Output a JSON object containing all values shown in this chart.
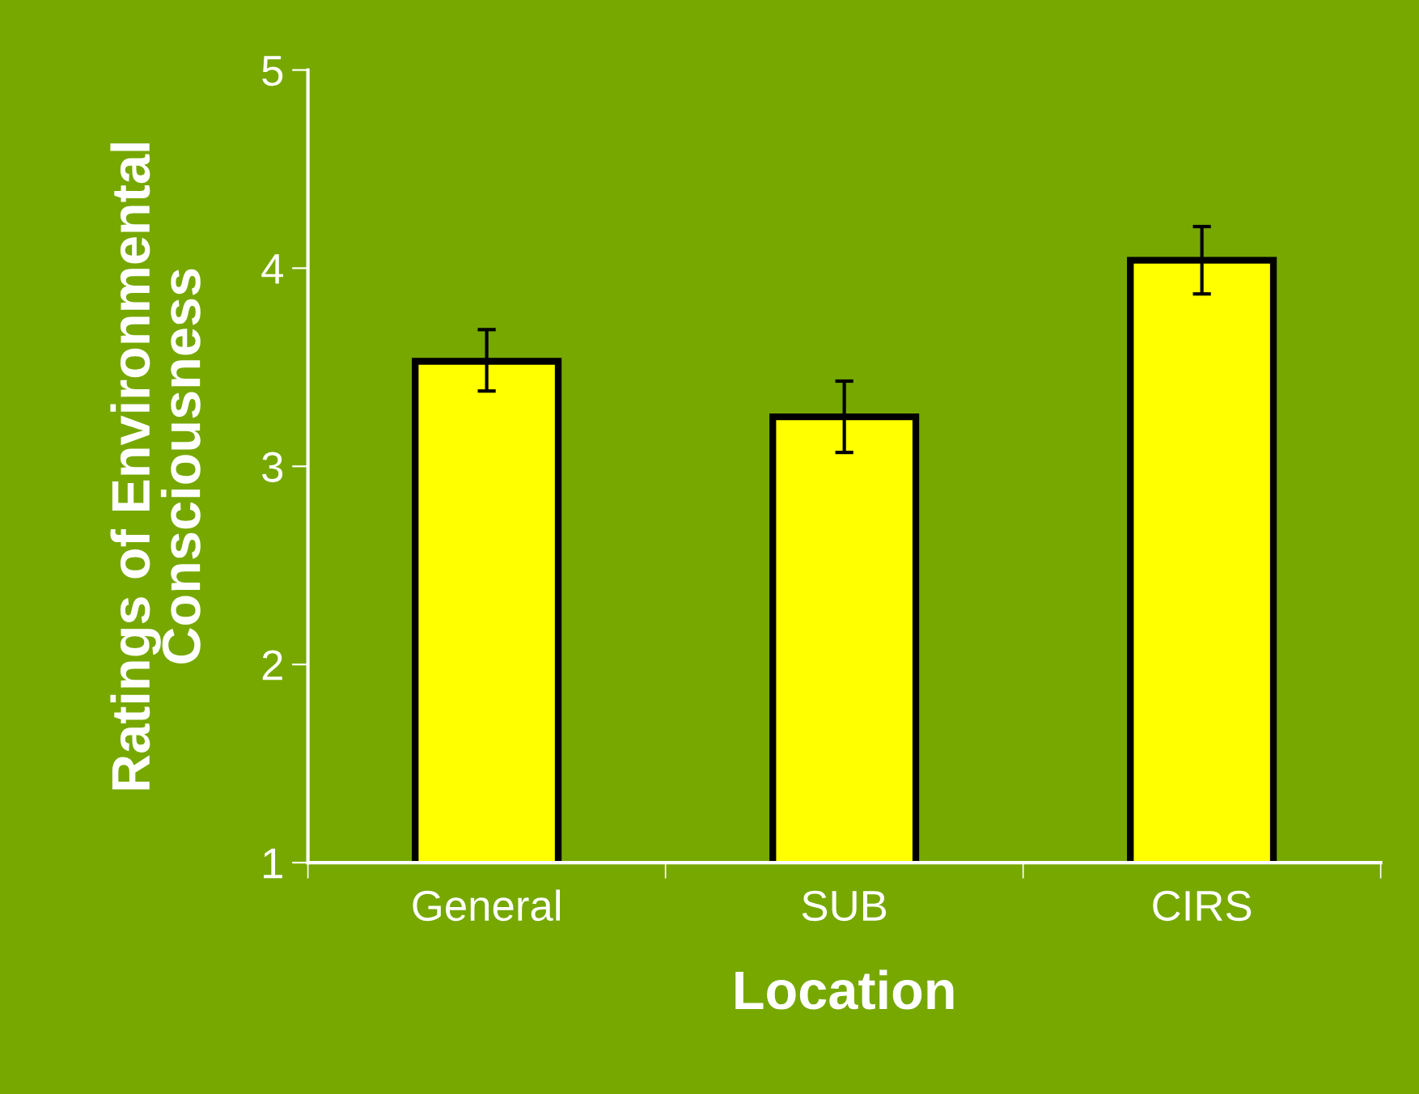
{
  "chart_data": {
    "type": "bar",
    "xlabel": "Location",
    "ylabel": "Ratings of Environmental\nConsciousness",
    "categories": [
      "General",
      "SUB",
      "CIRS"
    ],
    "values": [
      3.53,
      3.25,
      4.04
    ],
    "errors": [
      [
        3.38,
        3.69
      ],
      [
        3.07,
        3.43
      ],
      [
        3.87,
        4.21
      ]
    ],
    "color": "#ffff00",
    "ylim": [
      1,
      5
    ],
    "yticks": [
      1,
      2,
      3,
      4,
      5
    ],
    "grid": false
  }
}
